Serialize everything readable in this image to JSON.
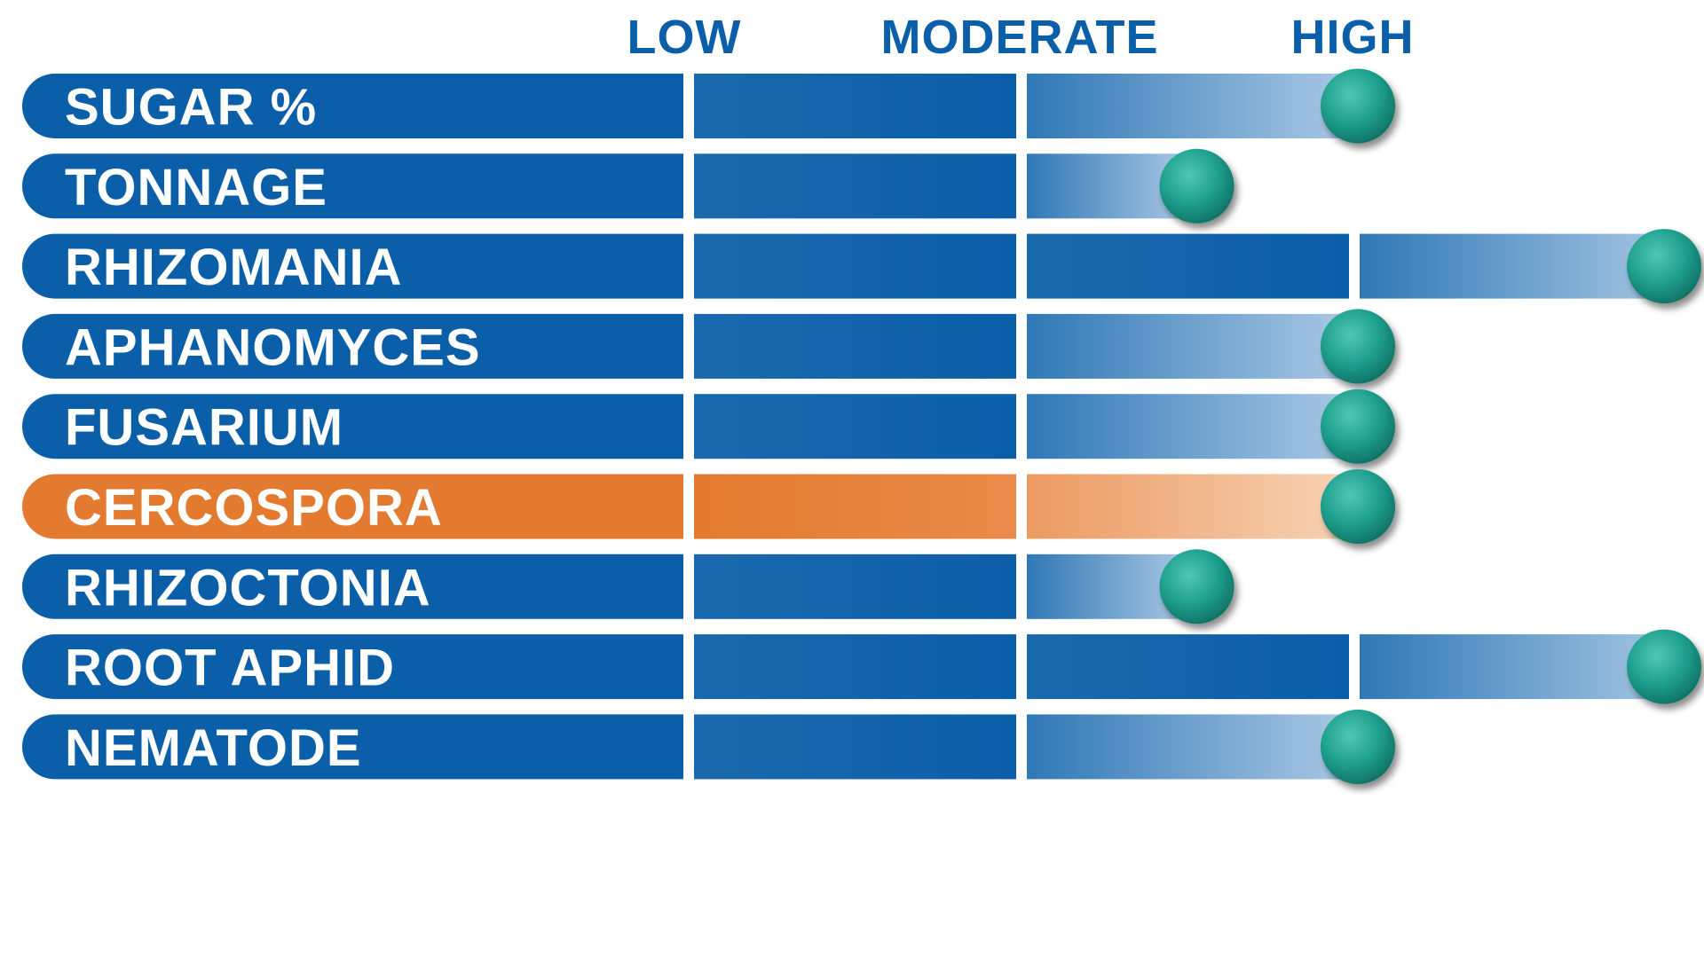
{
  "chart_data": {
    "type": "bar",
    "orientation": "horizontal",
    "scale_labels": [
      "LOW",
      "MODERATE",
      "HIGH"
    ],
    "max_segments": 4,
    "categories": [
      "SUGAR %",
      "TONNAGE",
      "RHIZOMANIA",
      "APHANOMYCES",
      "FUSARIUM",
      "CERCOSPORA",
      "RHIZOCTONIA",
      "ROOT APHID",
      "NEMATODE"
    ],
    "values": [
      3,
      2.5,
      4,
      3,
      3,
      3,
      2.5,
      4,
      3
    ],
    "highlight": [
      "CERCOSPORA"
    ],
    "grid": false,
    "legend": "none"
  },
  "colors": {
    "blue": "#0b5ea8",
    "blue_light": "#aac8e4",
    "orange": "#e37a2f",
    "orange_light": "#f6d2b4",
    "marker": "#1fa08e",
    "marker_dark": "#0e6f62",
    "scale_text": "#0b5ea8",
    "label_text": "#ffffff"
  },
  "marker_icon": "teal-ball-icon"
}
